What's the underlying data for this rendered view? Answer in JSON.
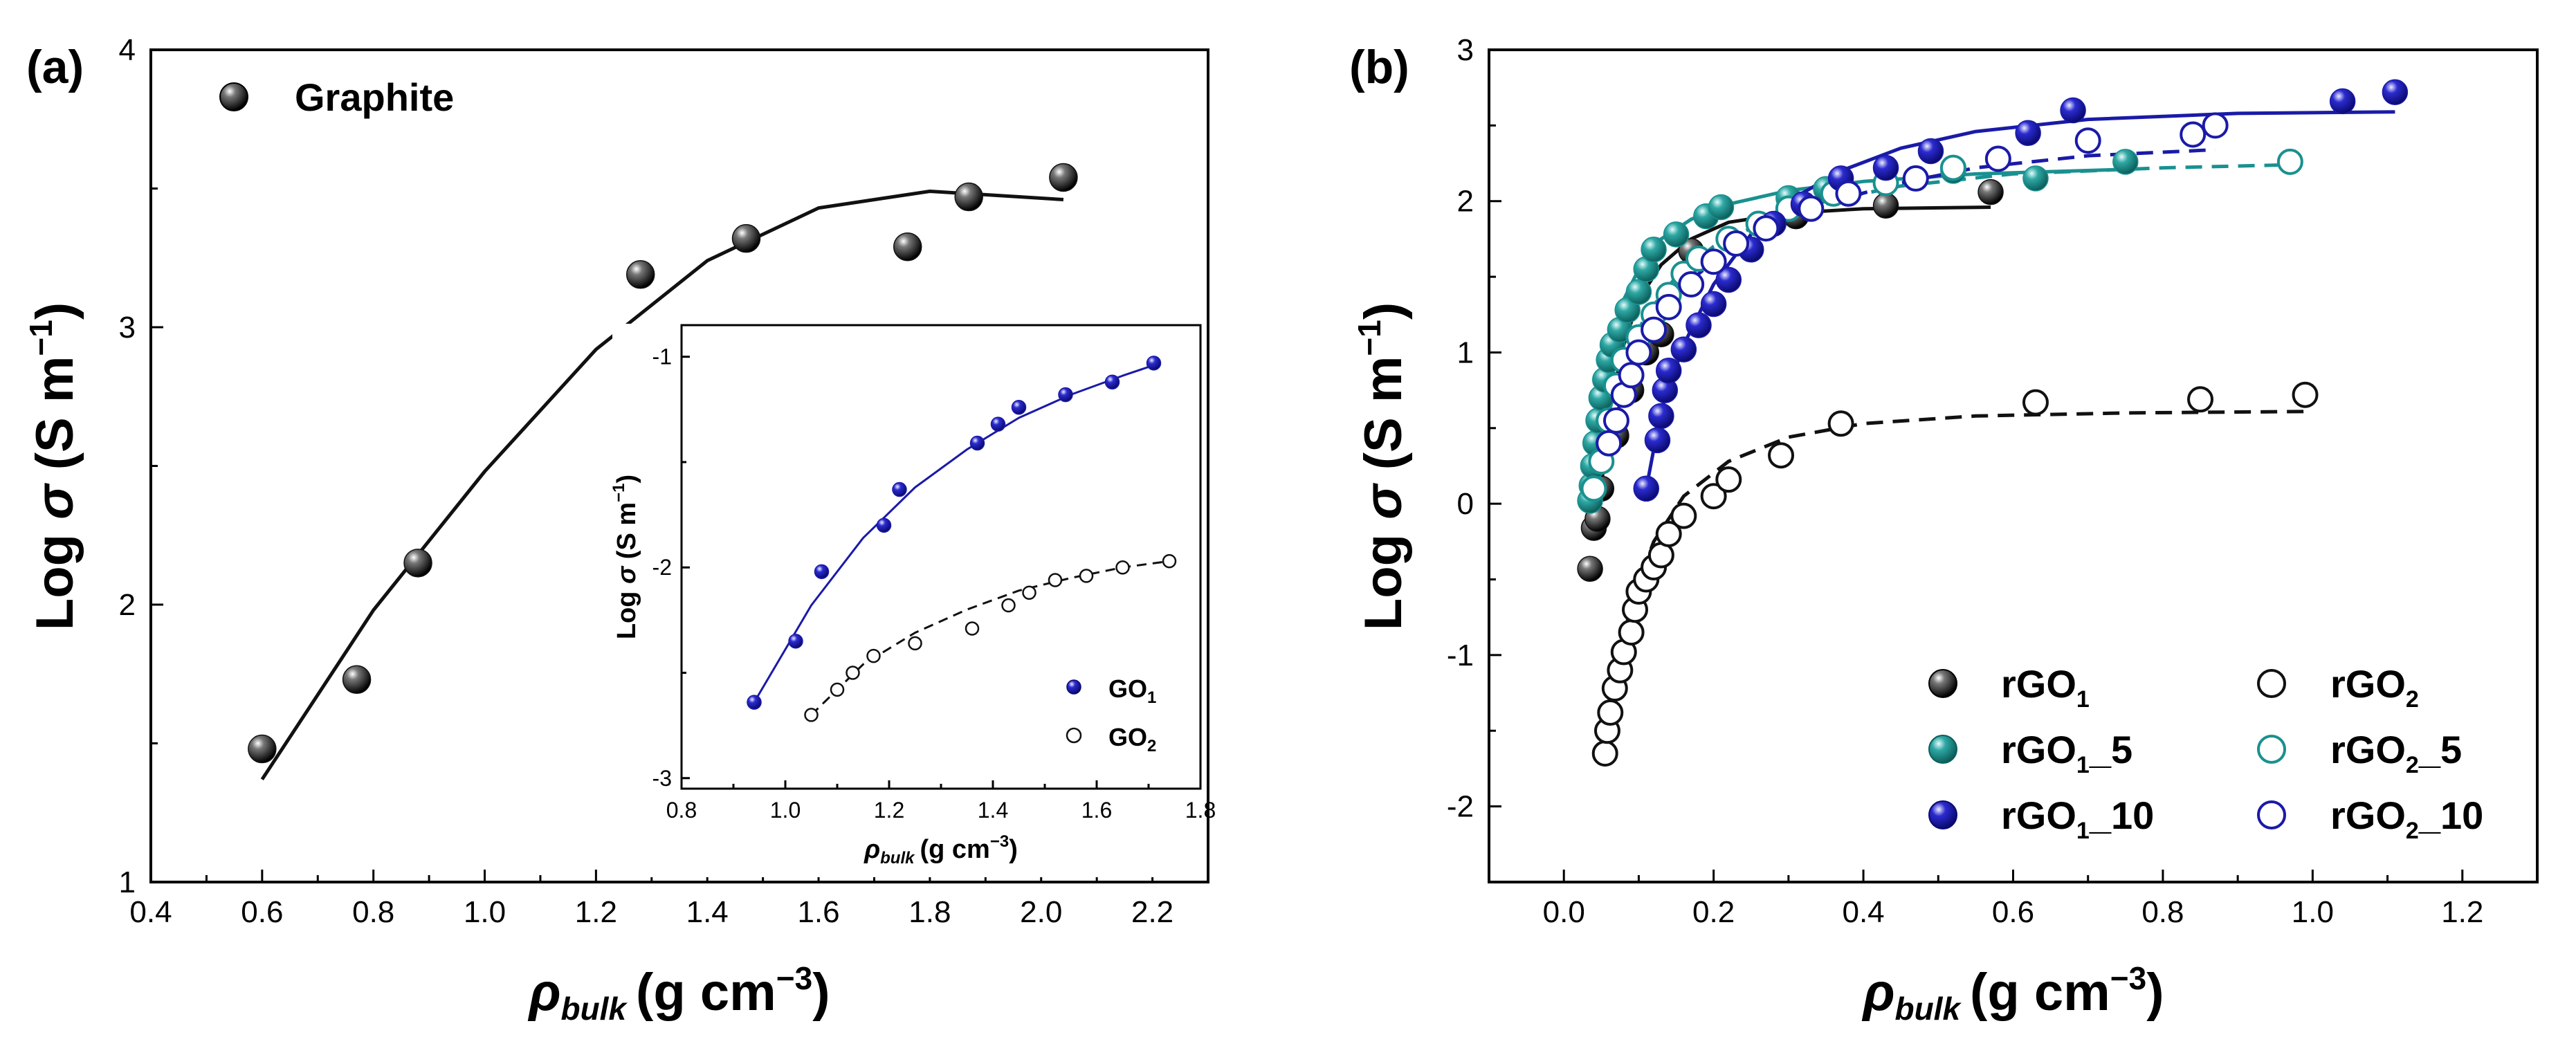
{
  "chart_data": [
    {
      "type": "scatter",
      "panel_label": "(a)",
      "xlabel": {
        "symbol": "ρ",
        "sub": "bulk",
        "unit": "(g cm",
        "sup": "−3",
        "close": ")"
      },
      "ylabel": {
        "main": "Log ",
        "symbol": "σ",
        "unit": " (S m",
        "sup": "−1",
        "close": ")"
      },
      "xlim": [
        0.4,
        2.3
      ],
      "ylim": [
        1,
        4
      ],
      "xticks": [
        "0.4",
        "0.6",
        "0.8",
        "1.0",
        "1.2",
        "1.4",
        "1.6",
        "1.8",
        "2.0",
        "2.2"
      ],
      "yticks": [
        "1",
        "2",
        "3",
        "4"
      ],
      "legend": {
        "position": "top-left",
        "entries": [
          {
            "label": "Graphite"
          }
        ]
      },
      "series": [
        {
          "name": "Graphite",
          "marker": "filled-sphere",
          "color": "#111111",
          "points": [
            [
              0.6,
              1.48
            ],
            [
              0.77,
              1.73
            ],
            [
              0.88,
              2.15
            ],
            [
              1.28,
              3.19
            ],
            [
              1.47,
              3.32
            ],
            [
              1.76,
              3.29
            ],
            [
              1.87,
              3.47
            ],
            [
              2.04,
              3.54
            ]
          ],
          "fit": {
            "style": "solid",
            "from": 0.6,
            "to": 2.04,
            "x": [
              0.6,
              0.8,
              1.0,
              1.2,
              1.4,
              1.6,
              1.8,
              2.04
            ],
            "y": [
              1.37,
              1.98,
              2.48,
              2.92,
              3.24,
              3.43,
              3.49,
              3.46
            ]
          }
        }
      ],
      "inset": {
        "type": "scatter",
        "xlabel": {
          "symbol": "ρ",
          "sub": "bulk",
          "unit": "(g cm",
          "sup": "−3",
          "close": ")"
        },
        "ylabel": {
          "main": "Log ",
          "symbol": "σ",
          "unit": " (S m",
          "sup": "−1",
          "close": ")"
        },
        "xlim": [
          0.8,
          1.8
        ],
        "ylim": [
          -3.05,
          -0.85
        ],
        "xticks": [
          "0.8",
          "1.0",
          "1.2",
          "1.4",
          "1.6",
          "1.8"
        ],
        "yticks": [
          "-1",
          "-2",
          "-3"
        ],
        "legend": {
          "position": "bottom-right",
          "entries": [
            {
              "label": "GO",
              "sub": "1"
            },
            {
              "label": "GO",
              "sub": "2"
            }
          ]
        },
        "series": [
          {
            "name": "GO1",
            "marker": "filled-sphere",
            "color": "#1a1aa8",
            "points": [
              [
                0.94,
                -2.64
              ],
              [
                1.02,
                -2.35
              ],
              [
                1.07,
                -2.02
              ],
              [
                1.19,
                -1.8
              ],
              [
                1.22,
                -1.63
              ],
              [
                1.37,
                -1.41
              ],
              [
                1.41,
                -1.32
              ],
              [
                1.45,
                -1.24
              ],
              [
                1.54,
                -1.18
              ],
              [
                1.63,
                -1.12
              ],
              [
                1.71,
                -1.03
              ]
            ],
            "fit": {
              "style": "solid",
              "x": [
                0.94,
                1.05,
                1.15,
                1.25,
                1.35,
                1.45,
                1.55,
                1.65,
                1.71
              ],
              "y": [
                -2.64,
                -2.18,
                -1.86,
                -1.62,
                -1.44,
                -1.29,
                -1.18,
                -1.09,
                -1.04
              ]
            }
          },
          {
            "name": "GO2",
            "marker": "open-circle",
            "color": "#111111",
            "points": [
              [
                1.05,
                -2.7
              ],
              [
                1.1,
                -2.58
              ],
              [
                1.13,
                -2.5
              ],
              [
                1.17,
                -2.42
              ],
              [
                1.25,
                -2.36
              ],
              [
                1.36,
                -2.29
              ],
              [
                1.43,
                -2.18
              ],
              [
                1.47,
                -2.12
              ],
              [
                1.52,
                -2.06
              ],
              [
                1.58,
                -2.04
              ],
              [
                1.65,
                -2.0
              ],
              [
                1.74,
                -1.97
              ]
            ],
            "fit": {
              "style": "dashed",
              "x": [
                1.05,
                1.15,
                1.25,
                1.35,
                1.45,
                1.55,
                1.65,
                1.74
              ],
              "y": [
                -2.7,
                -2.46,
                -2.31,
                -2.2,
                -2.11,
                -2.05,
                -2.0,
                -1.97
              ]
            }
          }
        ]
      }
    },
    {
      "type": "scatter",
      "panel_label": "(b)",
      "xlabel": {
        "symbol": "ρ",
        "sub": "bulk",
        "unit": "(g cm",
        "sup": "−3",
        "close": ")"
      },
      "ylabel": {
        "main": "Log ",
        "symbol": "σ",
        "unit": " (S m",
        "sup": "−1",
        "close": ")"
      },
      "xlim": [
        -0.1,
        1.3
      ],
      "ylim": [
        -2.5,
        3
      ],
      "xticks": [
        "0.0",
        "0.2",
        "0.4",
        "0.6",
        "0.8",
        "1.0",
        "1.2"
      ],
      "yticks": [
        "-2",
        "-1",
        "0",
        "1",
        "2",
        "3"
      ],
      "legend": {
        "position": "bottom-right",
        "entries": [
          {
            "label": "rGO",
            "sub": "1",
            "suffix": ""
          },
          {
            "label": "rGO",
            "sub": "2",
            "suffix": ""
          },
          {
            "label": "rGO",
            "sub": "1",
            "suffix": "_5"
          },
          {
            "label": "rGO",
            "sub": "2",
            "suffix": "_5"
          },
          {
            "label": "rGO",
            "sub": "1",
            "suffix": "_10"
          },
          {
            "label": "rGO",
            "sub": "2",
            "suffix": "_10"
          }
        ]
      },
      "series": [
        {
          "name": "rGO1",
          "marker": "filled-sphere",
          "color": "#111111",
          "points": [
            [
              0.035,
              -0.43
            ],
            [
              0.04,
              -0.16
            ],
            [
              0.045,
              -0.1
            ],
            [
              0.05,
              0.1
            ],
            [
              0.07,
              0.45
            ],
            [
              0.09,
              0.75
            ],
            [
              0.11,
              1.0
            ],
            [
              0.13,
              1.12
            ],
            [
              0.17,
              1.67
            ],
            [
              0.31,
              1.9
            ],
            [
              0.43,
              1.97
            ],
            [
              0.57,
              2.06
            ]
          ],
          "fit": {
            "style": "solid",
            "x": [
              0.045,
              0.06,
              0.08,
              0.1,
              0.13,
              0.17,
              0.22,
              0.3,
              0.4,
              0.57
            ],
            "y": [
              -0.15,
              0.6,
              1.05,
              1.35,
              1.58,
              1.75,
              1.86,
              1.92,
              1.95,
              1.96
            ]
          }
        },
        {
          "name": "rGO2",
          "marker": "open-circle",
          "color": "#111111",
          "points": [
            [
              0.055,
              -1.65
            ],
            [
              0.058,
              -1.5
            ],
            [
              0.062,
              -1.38
            ],
            [
              0.068,
              -1.22
            ],
            [
              0.075,
              -1.1
            ],
            [
              0.08,
              -0.98
            ],
            [
              0.09,
              -0.85
            ],
            [
              0.095,
              -0.7
            ],
            [
              0.1,
              -0.58
            ],
            [
              0.11,
              -0.5
            ],
            [
              0.12,
              -0.42
            ],
            [
              0.13,
              -0.34
            ],
            [
              0.14,
              -0.2
            ],
            [
              0.16,
              -0.08
            ],
            [
              0.2,
              0.05
            ],
            [
              0.22,
              0.16
            ],
            [
              0.29,
              0.32
            ],
            [
              0.37,
              0.53
            ],
            [
              0.63,
              0.67
            ],
            [
              0.85,
              0.69
            ],
            [
              0.99,
              0.72
            ]
          ],
          "fit": {
            "style": "dashed",
            "x": [
              0.055,
              0.07,
              0.09,
              0.12,
              0.16,
              0.22,
              0.3,
              0.4,
              0.55,
              0.75,
              0.99
            ],
            "y": [
              -1.65,
              -1.15,
              -0.65,
              -0.25,
              0.05,
              0.28,
              0.44,
              0.53,
              0.58,
              0.6,
              0.61
            ]
          }
        },
        {
          "name": "rGO1_5",
          "marker": "filled-sphere",
          "color": "#1a9090",
          "points": [
            [
              0.035,
              0.02
            ],
            [
              0.037,
              0.12
            ],
            [
              0.039,
              0.25
            ],
            [
              0.042,
              0.4
            ],
            [
              0.046,
              0.55
            ],
            [
              0.05,
              0.7
            ],
            [
              0.055,
              0.82
            ],
            [
              0.06,
              0.95
            ],
            [
              0.065,
              1.05
            ],
            [
              0.075,
              1.15
            ],
            [
              0.085,
              1.28
            ],
            [
              0.1,
              1.4
            ],
            [
              0.11,
              1.55
            ],
            [
              0.12,
              1.68
            ],
            [
              0.15,
              1.78
            ],
            [
              0.19,
              1.9
            ],
            [
              0.21,
              1.96
            ],
            [
              0.3,
              2.02
            ],
            [
              0.35,
              2.08
            ],
            [
              0.52,
              2.2
            ],
            [
              0.63,
              2.15
            ],
            [
              0.75,
              2.26
            ]
          ],
          "fit": {
            "style": "solid",
            "x": [
              0.035,
              0.045,
              0.06,
              0.08,
              0.1,
              0.13,
              0.17,
              0.22,
              0.3,
              0.4,
              0.55,
              0.75
            ],
            "y": [
              0.0,
              0.55,
              1.0,
              1.35,
              1.55,
              1.75,
              1.88,
              1.98,
              2.07,
              2.13,
              2.18,
              2.21
            ]
          }
        },
        {
          "name": "rGO2_5",
          "marker": "open-circle",
          "color": "#1a9090",
          "points": [
            [
              0.04,
              0.1
            ],
            [
              0.05,
              0.28
            ],
            [
              0.06,
              0.55
            ],
            [
              0.07,
              0.78
            ],
            [
              0.08,
              0.95
            ],
            [
              0.1,
              1.1
            ],
            [
              0.12,
              1.25
            ],
            [
              0.14,
              1.38
            ],
            [
              0.16,
              1.52
            ],
            [
              0.18,
              1.62
            ],
            [
              0.22,
              1.75
            ],
            [
              0.26,
              1.85
            ],
            [
              0.3,
              1.95
            ],
            [
              0.36,
              2.05
            ],
            [
              0.43,
              2.12
            ],
            [
              0.52,
              2.22
            ],
            [
              0.97,
              2.26
            ]
          ],
          "fit": {
            "style": "dashed",
            "x": [
              0.04,
              0.06,
              0.08,
              0.11,
              0.15,
              0.2,
              0.27,
              0.35,
              0.45,
              0.6,
              0.8,
              0.97
            ],
            "y": [
              0.1,
              0.6,
              0.95,
              1.25,
              1.5,
              1.7,
              1.87,
              2.0,
              2.1,
              2.18,
              2.22,
              2.24
            ]
          }
        },
        {
          "name": "rGO1_10",
          "marker": "filled-sphere",
          "color": "#1a1aa8",
          "points": [
            [
              0.11,
              0.1
            ],
            [
              0.125,
              0.42
            ],
            [
              0.13,
              0.58
            ],
            [
              0.135,
              0.75
            ],
            [
              0.14,
              0.88
            ],
            [
              0.16,
              1.02
            ],
            [
              0.18,
              1.18
            ],
            [
              0.2,
              1.32
            ],
            [
              0.22,
              1.48
            ],
            [
              0.25,
              1.68
            ],
            [
              0.28,
              1.85
            ],
            [
              0.32,
              1.98
            ],
            [
              0.37,
              2.15
            ],
            [
              0.43,
              2.22
            ],
            [
              0.49,
              2.33
            ],
            [
              0.62,
              2.45
            ],
            [
              0.68,
              2.6
            ],
            [
              1.04,
              2.66
            ],
            [
              1.11,
              2.72
            ]
          ],
          "fit": {
            "style": "solid",
            "x": [
              0.11,
              0.13,
              0.16,
              0.2,
              0.25,
              0.3,
              0.37,
              0.45,
              0.55,
              0.7,
              0.9,
              1.11
            ],
            "y": [
              0.1,
              0.62,
              1.05,
              1.45,
              1.78,
              2.0,
              2.2,
              2.35,
              2.46,
              2.54,
              2.58,
              2.59
            ]
          }
        },
        {
          "name": "rGO2_10",
          "marker": "open-circle",
          "color": "#1a1aa8",
          "points": [
            [
              0.06,
              0.4
            ],
            [
              0.07,
              0.55
            ],
            [
              0.08,
              0.72
            ],
            [
              0.09,
              0.85
            ],
            [
              0.1,
              1.0
            ],
            [
              0.12,
              1.15
            ],
            [
              0.14,
              1.3
            ],
            [
              0.17,
              1.45
            ],
            [
              0.2,
              1.6
            ],
            [
              0.23,
              1.72
            ],
            [
              0.27,
              1.82
            ],
            [
              0.33,
              1.95
            ],
            [
              0.38,
              2.05
            ],
            [
              0.47,
              2.15
            ],
            [
              0.58,
              2.28
            ],
            [
              0.7,
              2.4
            ],
            [
              0.84,
              2.44
            ],
            [
              0.87,
              2.5
            ]
          ],
          "fit": {
            "style": "dashed",
            "x": [
              0.06,
              0.08,
              0.1,
              0.13,
              0.17,
              0.22,
              0.28,
              0.36,
              0.45,
              0.55,
              0.7,
              0.87
            ],
            "y": [
              0.4,
              0.75,
              1.0,
              1.25,
              1.48,
              1.68,
              1.85,
              2.0,
              2.12,
              2.22,
              2.3,
              2.34
            ]
          }
        }
      ]
    }
  ]
}
